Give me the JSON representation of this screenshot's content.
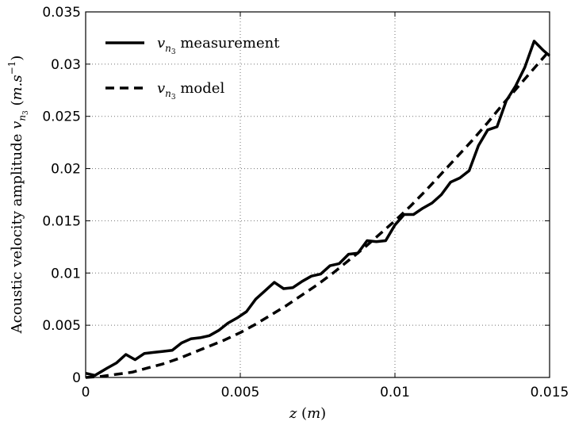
{
  "chart_data": {
    "type": "line",
    "xlabel": "z (m)",
    "ylabel": "Acoustic velocity amplitude v_{n_3} (m.s^{-1})",
    "xlim": [
      0,
      0.015
    ],
    "ylim": [
      0,
      0.035
    ],
    "xticks": [
      0,
      0.005,
      0.01,
      0.015
    ],
    "yticks": [
      0,
      0.005,
      0.01,
      0.015,
      0.02,
      0.025,
      0.03,
      0.035
    ],
    "xtick_labels": [
      "0",
      "0.005",
      "0.01",
      "0.015"
    ],
    "ytick_labels": [
      "0",
      "0.005",
      "0.01",
      "0.015",
      "0.02",
      "0.025",
      "0.03",
      "0.035"
    ],
    "grid": true,
    "legend_position": "top-left",
    "series": [
      {
        "name": "v_{n_3} measurement",
        "style": "solid",
        "color": "#000000",
        "x": [
          0,
          0.0003,
          0.0007,
          0.001,
          0.0013,
          0.0016,
          0.0019,
          0.0022,
          0.0025,
          0.0028,
          0.0031,
          0.0034,
          0.0037,
          0.004,
          0.0043,
          0.0046,
          0.0049,
          0.0052,
          0.0055,
          0.0058,
          0.0061,
          0.0064,
          0.0067,
          0.007,
          0.0073,
          0.0076,
          0.0079,
          0.0082,
          0.0085,
          0.0088,
          0.0091,
          0.0094,
          0.0097,
          0.01,
          0.0103,
          0.0106,
          0.0109,
          0.0112,
          0.0115,
          0.0118,
          0.0121,
          0.0124,
          0.0127,
          0.013,
          0.0133,
          0.0136,
          0.0139,
          0.0142,
          0.0145,
          0.0148,
          0.015
        ],
        "values": [
          0.0004,
          0.0002,
          0.0009,
          0.0014,
          0.0022,
          0.0017,
          0.0023,
          0.0024,
          0.0025,
          0.0026,
          0.0033,
          0.0037,
          0.0038,
          0.004,
          0.0045,
          0.0052,
          0.0057,
          0.0063,
          0.0075,
          0.0083,
          0.0091,
          0.0085,
          0.0086,
          0.0092,
          0.0097,
          0.0099,
          0.0107,
          0.0109,
          0.0118,
          0.0119,
          0.0131,
          0.013,
          0.0131,
          0.0146,
          0.0156,
          0.0156,
          0.0162,
          0.0167,
          0.0175,
          0.0187,
          0.0191,
          0.0198,
          0.0222,
          0.0237,
          0.024,
          0.0265,
          0.0279,
          0.0297,
          0.0322,
          0.0313,
          0.0308
        ]
      },
      {
        "name": "v_{n_3} model",
        "style": "dashed",
        "color": "#000000",
        "x": [
          0,
          0.0005,
          0.001,
          0.0015,
          0.002,
          0.0025,
          0.003,
          0.0035,
          0.004,
          0.0045,
          0.005,
          0.0055,
          0.006,
          0.0065,
          0.007,
          0.0075,
          0.008,
          0.0085,
          0.009,
          0.0095,
          0.01,
          0.0105,
          0.011,
          0.0115,
          0.012,
          0.0125,
          0.013,
          0.0135,
          0.014,
          0.0145,
          0.015
        ],
        "values": [
          0,
          0.0001,
          0.0003,
          0.0005,
          0.0009,
          0.0013,
          0.0018,
          0.0024,
          0.003,
          0.0036,
          0.0043,
          0.0051,
          0.006,
          0.0069,
          0.0079,
          0.0089,
          0.01,
          0.0112,
          0.0124,
          0.0137,
          0.015,
          0.0164,
          0.0179,
          0.0195,
          0.0211,
          0.0227,
          0.0244,
          0.0262,
          0.0279,
          0.0296,
          0.0313
        ]
      }
    ]
  }
}
